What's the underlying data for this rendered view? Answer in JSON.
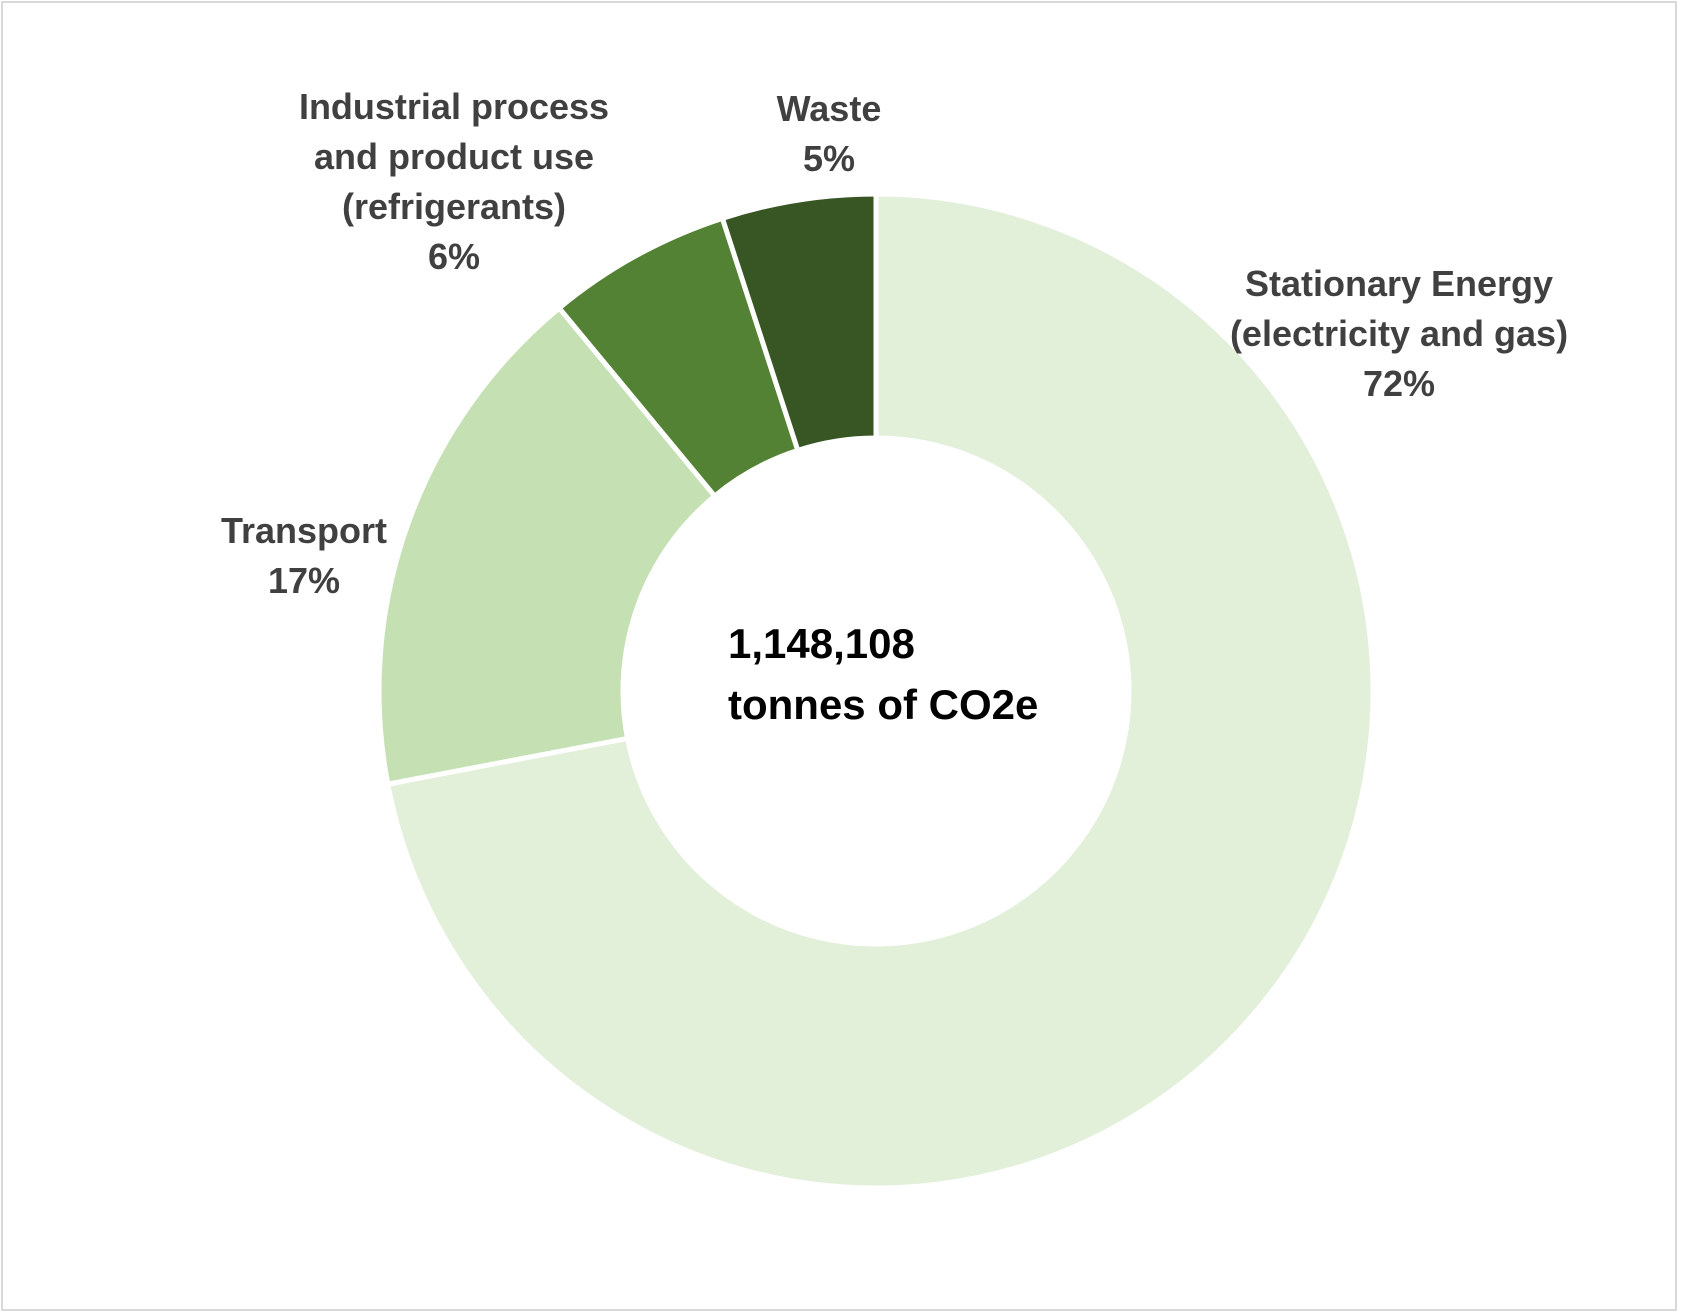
{
  "chart_data": {
    "type": "pie",
    "variant": "donut",
    "title": "",
    "center_label": {
      "value": "1,148,108",
      "unit": "tonnes of CO2e"
    },
    "slices": [
      {
        "label_lines": [
          "Stationary Energy",
          "(electricity and gas)"
        ],
        "percent_label": "72%",
        "value": 72,
        "color": "#e2efd9"
      },
      {
        "label_lines": [
          "Transport"
        ],
        "percent_label": "17%",
        "value": 17,
        "color": "#c5e0b3"
      },
      {
        "label_lines": [
          "Industrial process",
          "and product use",
          "(refrigerants)"
        ],
        "percent_label": "6%",
        "value": 6,
        "color": "#548235"
      },
      {
        "label_lines": [
          "Waste"
        ],
        "percent_label": "5%",
        "value": 5,
        "color": "#375623"
      }
    ],
    "legend": "none (data labels outside slices)"
  }
}
